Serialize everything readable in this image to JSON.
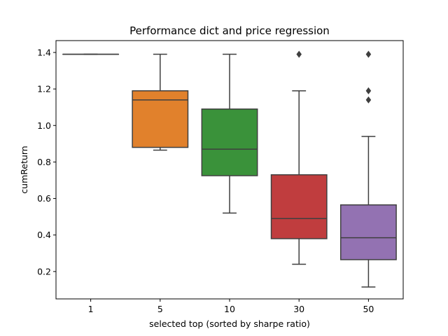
{
  "chart_data": {
    "type": "box",
    "title": "Performance dict and price regression",
    "xlabel": "selected top (sorted by sharpe ratio)",
    "ylabel": "cumReturn",
    "categories": [
      "1",
      "5",
      "10",
      "30",
      "50"
    ],
    "ylim": [
      0.05,
      1.465
    ],
    "yticks": [
      0.2,
      0.4,
      0.6,
      0.8,
      1.0,
      1.2,
      1.4
    ],
    "ytick_labels": [
      "0.2",
      "0.4",
      "0.6",
      "0.8",
      "1.0",
      "1.2",
      "1.4"
    ],
    "grid": false,
    "boxes": [
      {
        "category": "1",
        "color": "#3274a1",
        "whisker_low": 1.39,
        "q1": 1.39,
        "median": 1.39,
        "q3": 1.39,
        "whisker_high": 1.39,
        "outliers": []
      },
      {
        "category": "5",
        "color": "#e1812c",
        "whisker_low": 0.865,
        "q1": 0.88,
        "median": 1.14,
        "q3": 1.19,
        "whisker_high": 1.39,
        "outliers": []
      },
      {
        "category": "10",
        "color": "#3a923a",
        "whisker_low": 0.52,
        "q1": 0.725,
        "median": 0.87,
        "q3": 1.09,
        "whisker_high": 1.39,
        "outliers": []
      },
      {
        "category": "30",
        "color": "#c03d3e",
        "whisker_low": 0.24,
        "q1": 0.38,
        "median": 0.49,
        "q3": 0.73,
        "whisker_high": 1.19,
        "outliers": [
          1.39
        ]
      },
      {
        "category": "50",
        "color": "#9372b2",
        "whisker_low": 0.115,
        "q1": 0.265,
        "median": 0.385,
        "q3": 0.565,
        "whisker_high": 0.94,
        "outliers": [
          1.14,
          1.19,
          1.39
        ]
      }
    ],
    "line_color": "#3f3f3f"
  }
}
